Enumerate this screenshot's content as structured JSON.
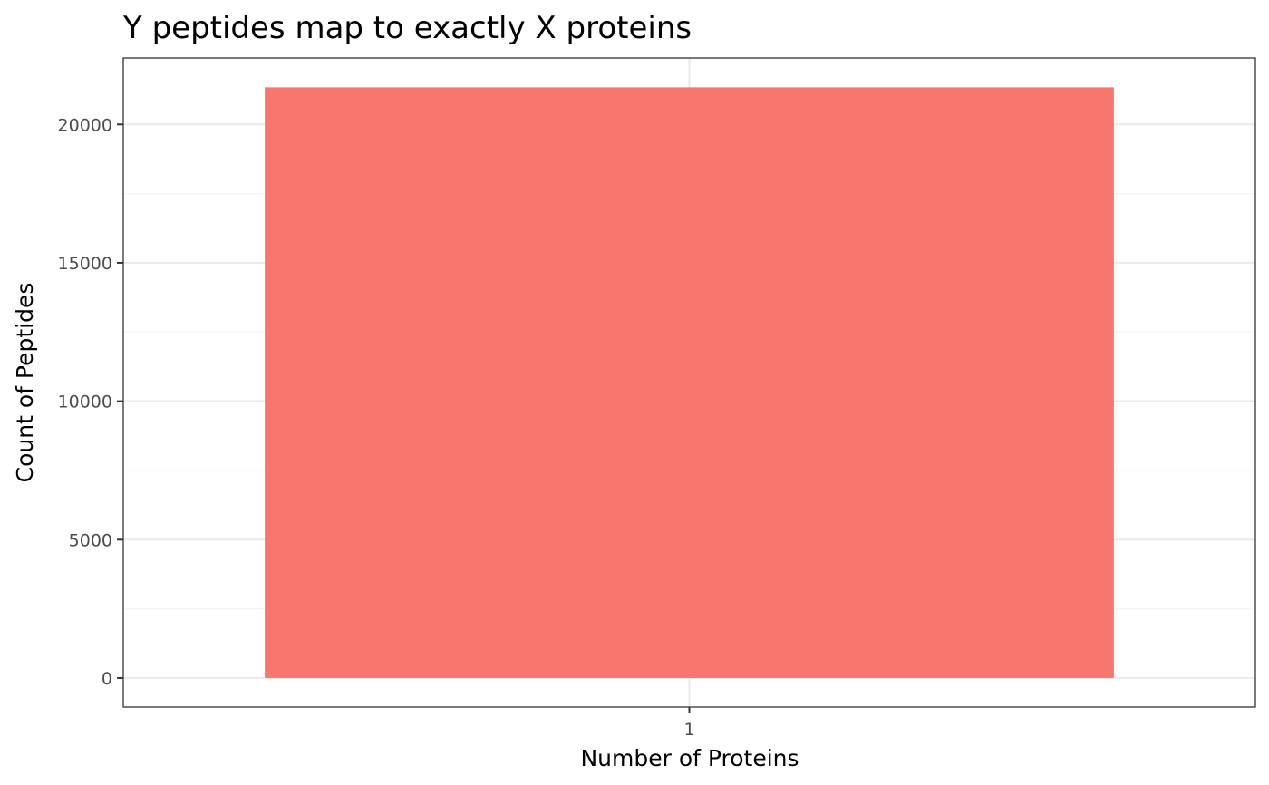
{
  "chart_data": {
    "type": "bar",
    "title": "Y peptides map to exactly X proteins",
    "xlabel": "Number of Proteins",
    "ylabel": "Count of Peptides",
    "categories": [
      "1"
    ],
    "values": [
      21340
    ],
    "ylim": [
      -1050,
      22400
    ],
    "yticks": [
      0,
      5000,
      10000,
      15000,
      20000
    ],
    "ytick_labels": [
      "0",
      "5000",
      "10000",
      "15000",
      "20000"
    ],
    "grid": true,
    "legend": "none",
    "colors": {
      "bar": "#F8766D",
      "grid_major": "#EBEBEB",
      "grid_minor": "#F5F5F5",
      "panel_border": "#333333",
      "tick": "#333333"
    }
  }
}
